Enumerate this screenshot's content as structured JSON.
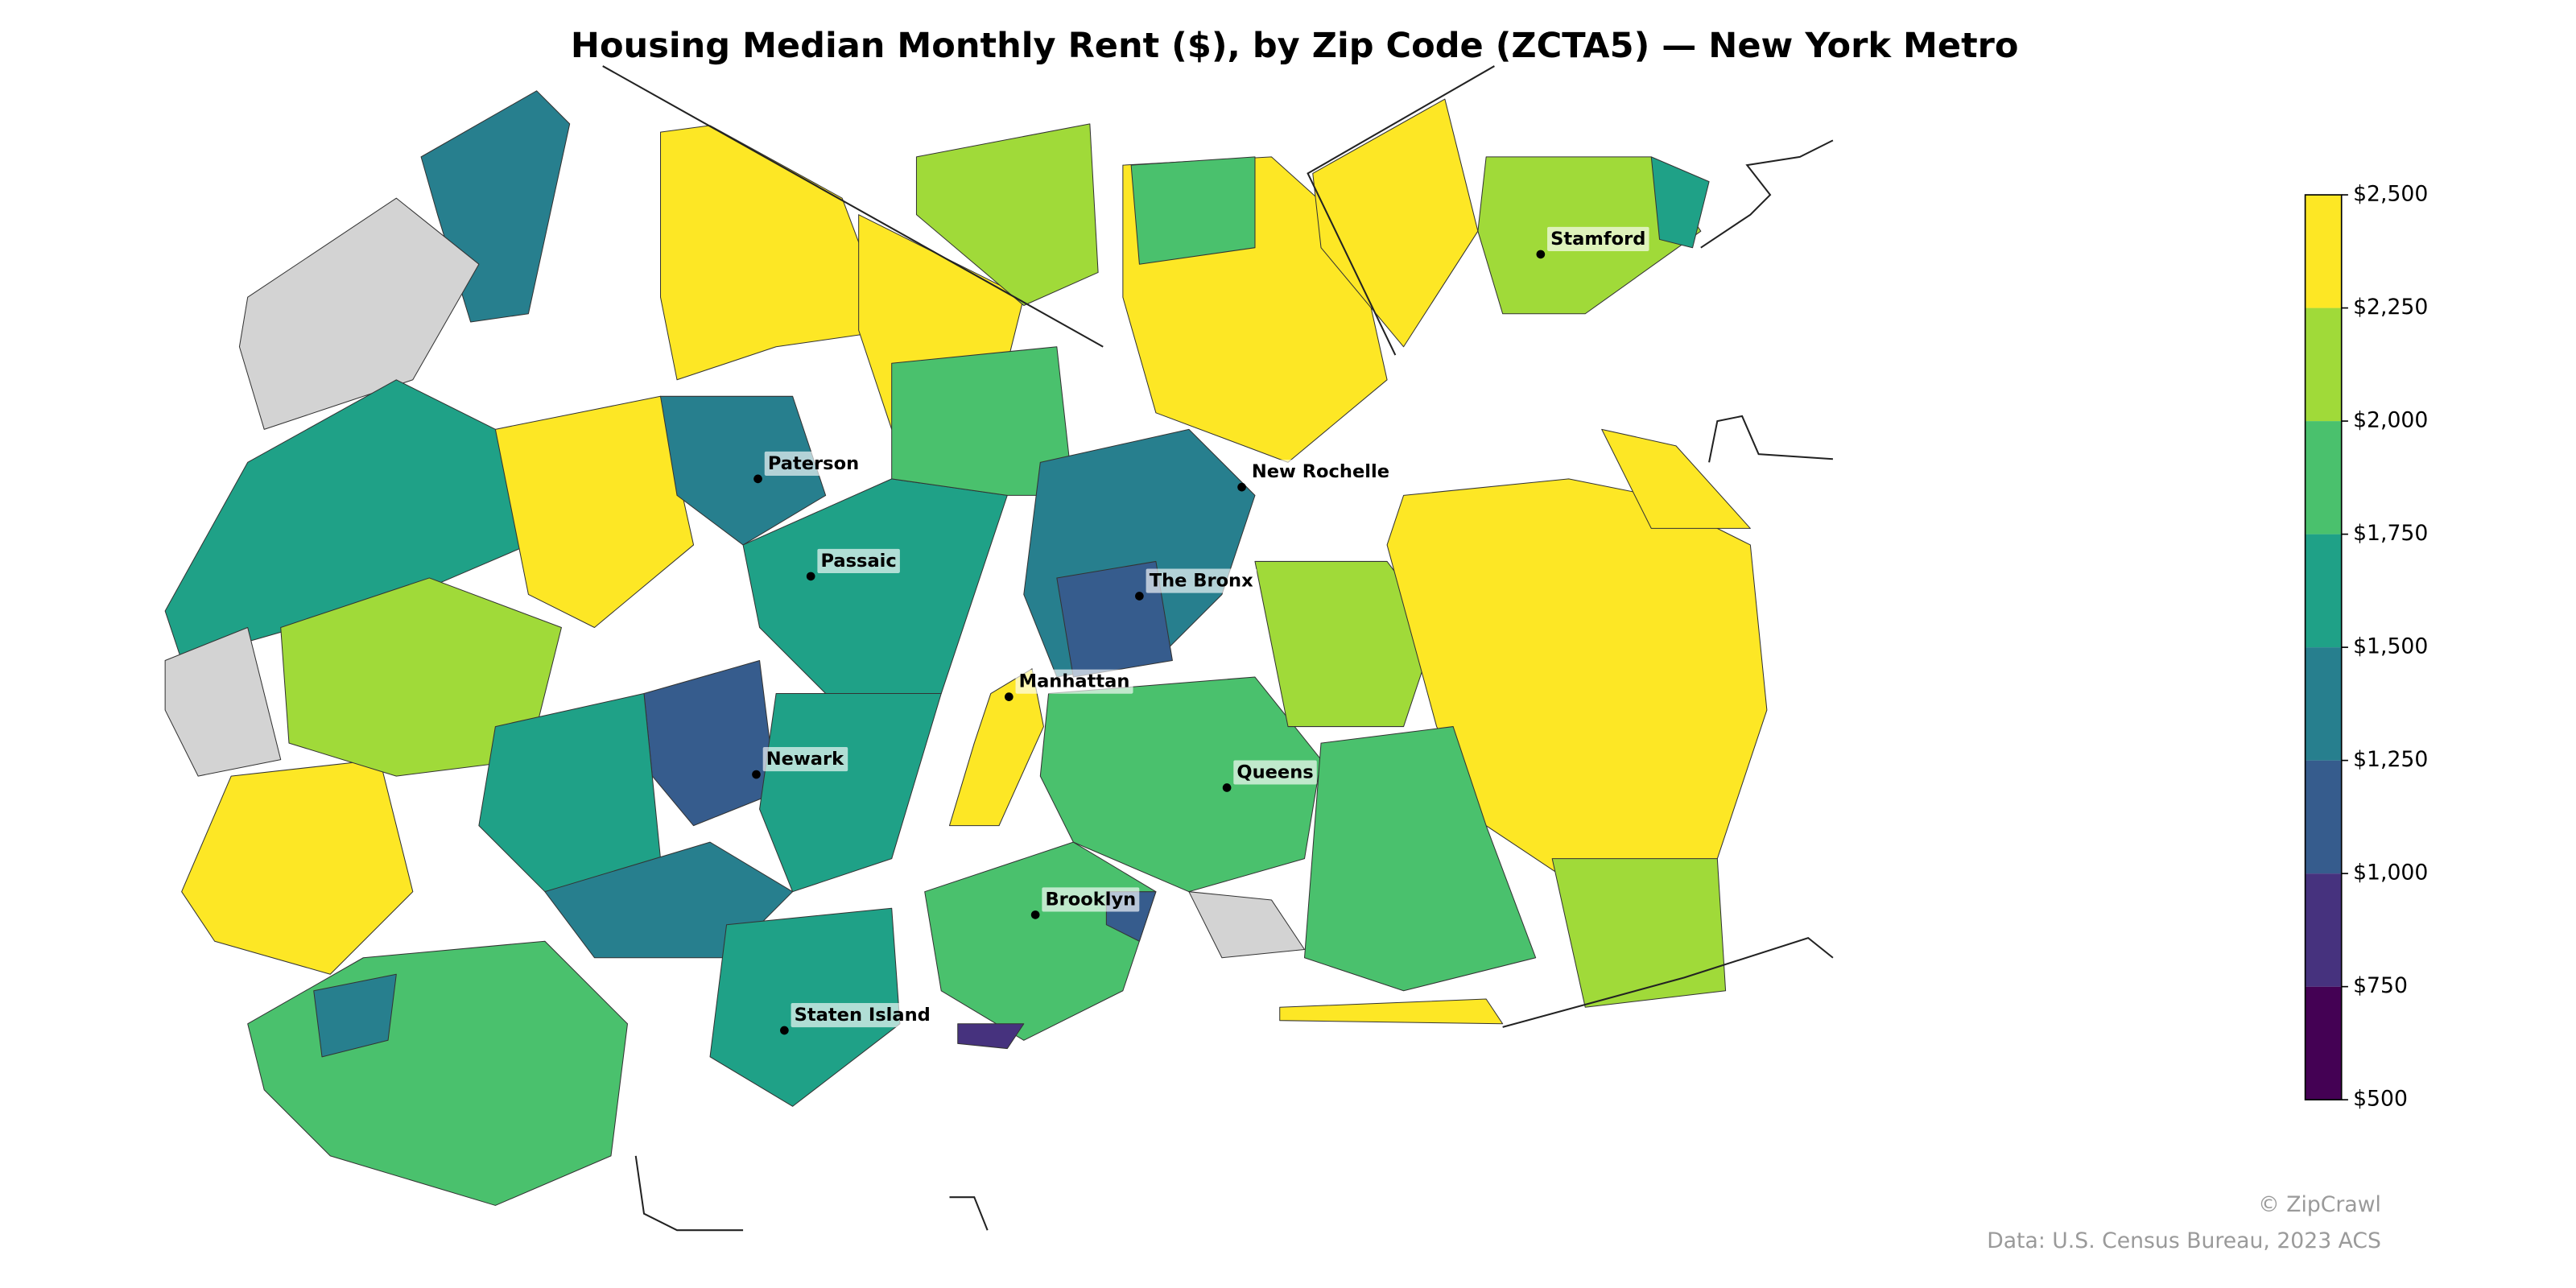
{
  "header": {
    "title": "Housing Median Monthly Rent ($), by Zip Code (ZCTA5) — New York Metro"
  },
  "map": {
    "no_data_color": "#d3d3d3",
    "regions": [
      1400,
      null,
      1600,
      null,
      2400,
      1900,
      2100,
      2350,
      2400,
      2300,
      2100,
      1350,
      1700,
      1850,
      1150,
      1550,
      1600,
      1450,
      1700,
      1300,
      2350,
      1800,
      1350,
      1100,
      2450,
      2150,
      1700,
      2450,
      1850,
      1750,
      800,
      1150,
      2200,
      2450,
      1900,
      2150,
      2400,
      2450,
      null
    ],
    "cities": [
      "Stamford",
      "New Rochelle",
      "Paterson",
      "Passaic",
      "The Bronx",
      "Manhattan",
      "Newark",
      "Queens",
      "Brooklyn",
      "Staten Island"
    ]
  },
  "colorbar": {
    "ticks": [
      {
        "value": 500,
        "label": "$500"
      },
      {
        "value": 750,
        "label": "$750"
      },
      {
        "value": 1000,
        "label": "$1,000"
      },
      {
        "value": 1250,
        "label": "$1,250"
      },
      {
        "value": 1500,
        "label": "$1,500"
      },
      {
        "value": 1750,
        "label": "$1,750"
      },
      {
        "value": 2000,
        "label": "$2,000"
      },
      {
        "value": 2250,
        "label": "$2,250"
      },
      {
        "value": 2500,
        "label": "$2,500"
      }
    ],
    "colors": [
      "#440154",
      "#46327e",
      "#365c8d",
      "#277f8e",
      "#1fa187",
      "#4ac16d",
      "#a0da39",
      "#fde725"
    ]
  },
  "footer": {
    "credit": "© ZipCrawl",
    "source": "Data: U.S. Census Bureau, 2023 ACS"
  }
}
